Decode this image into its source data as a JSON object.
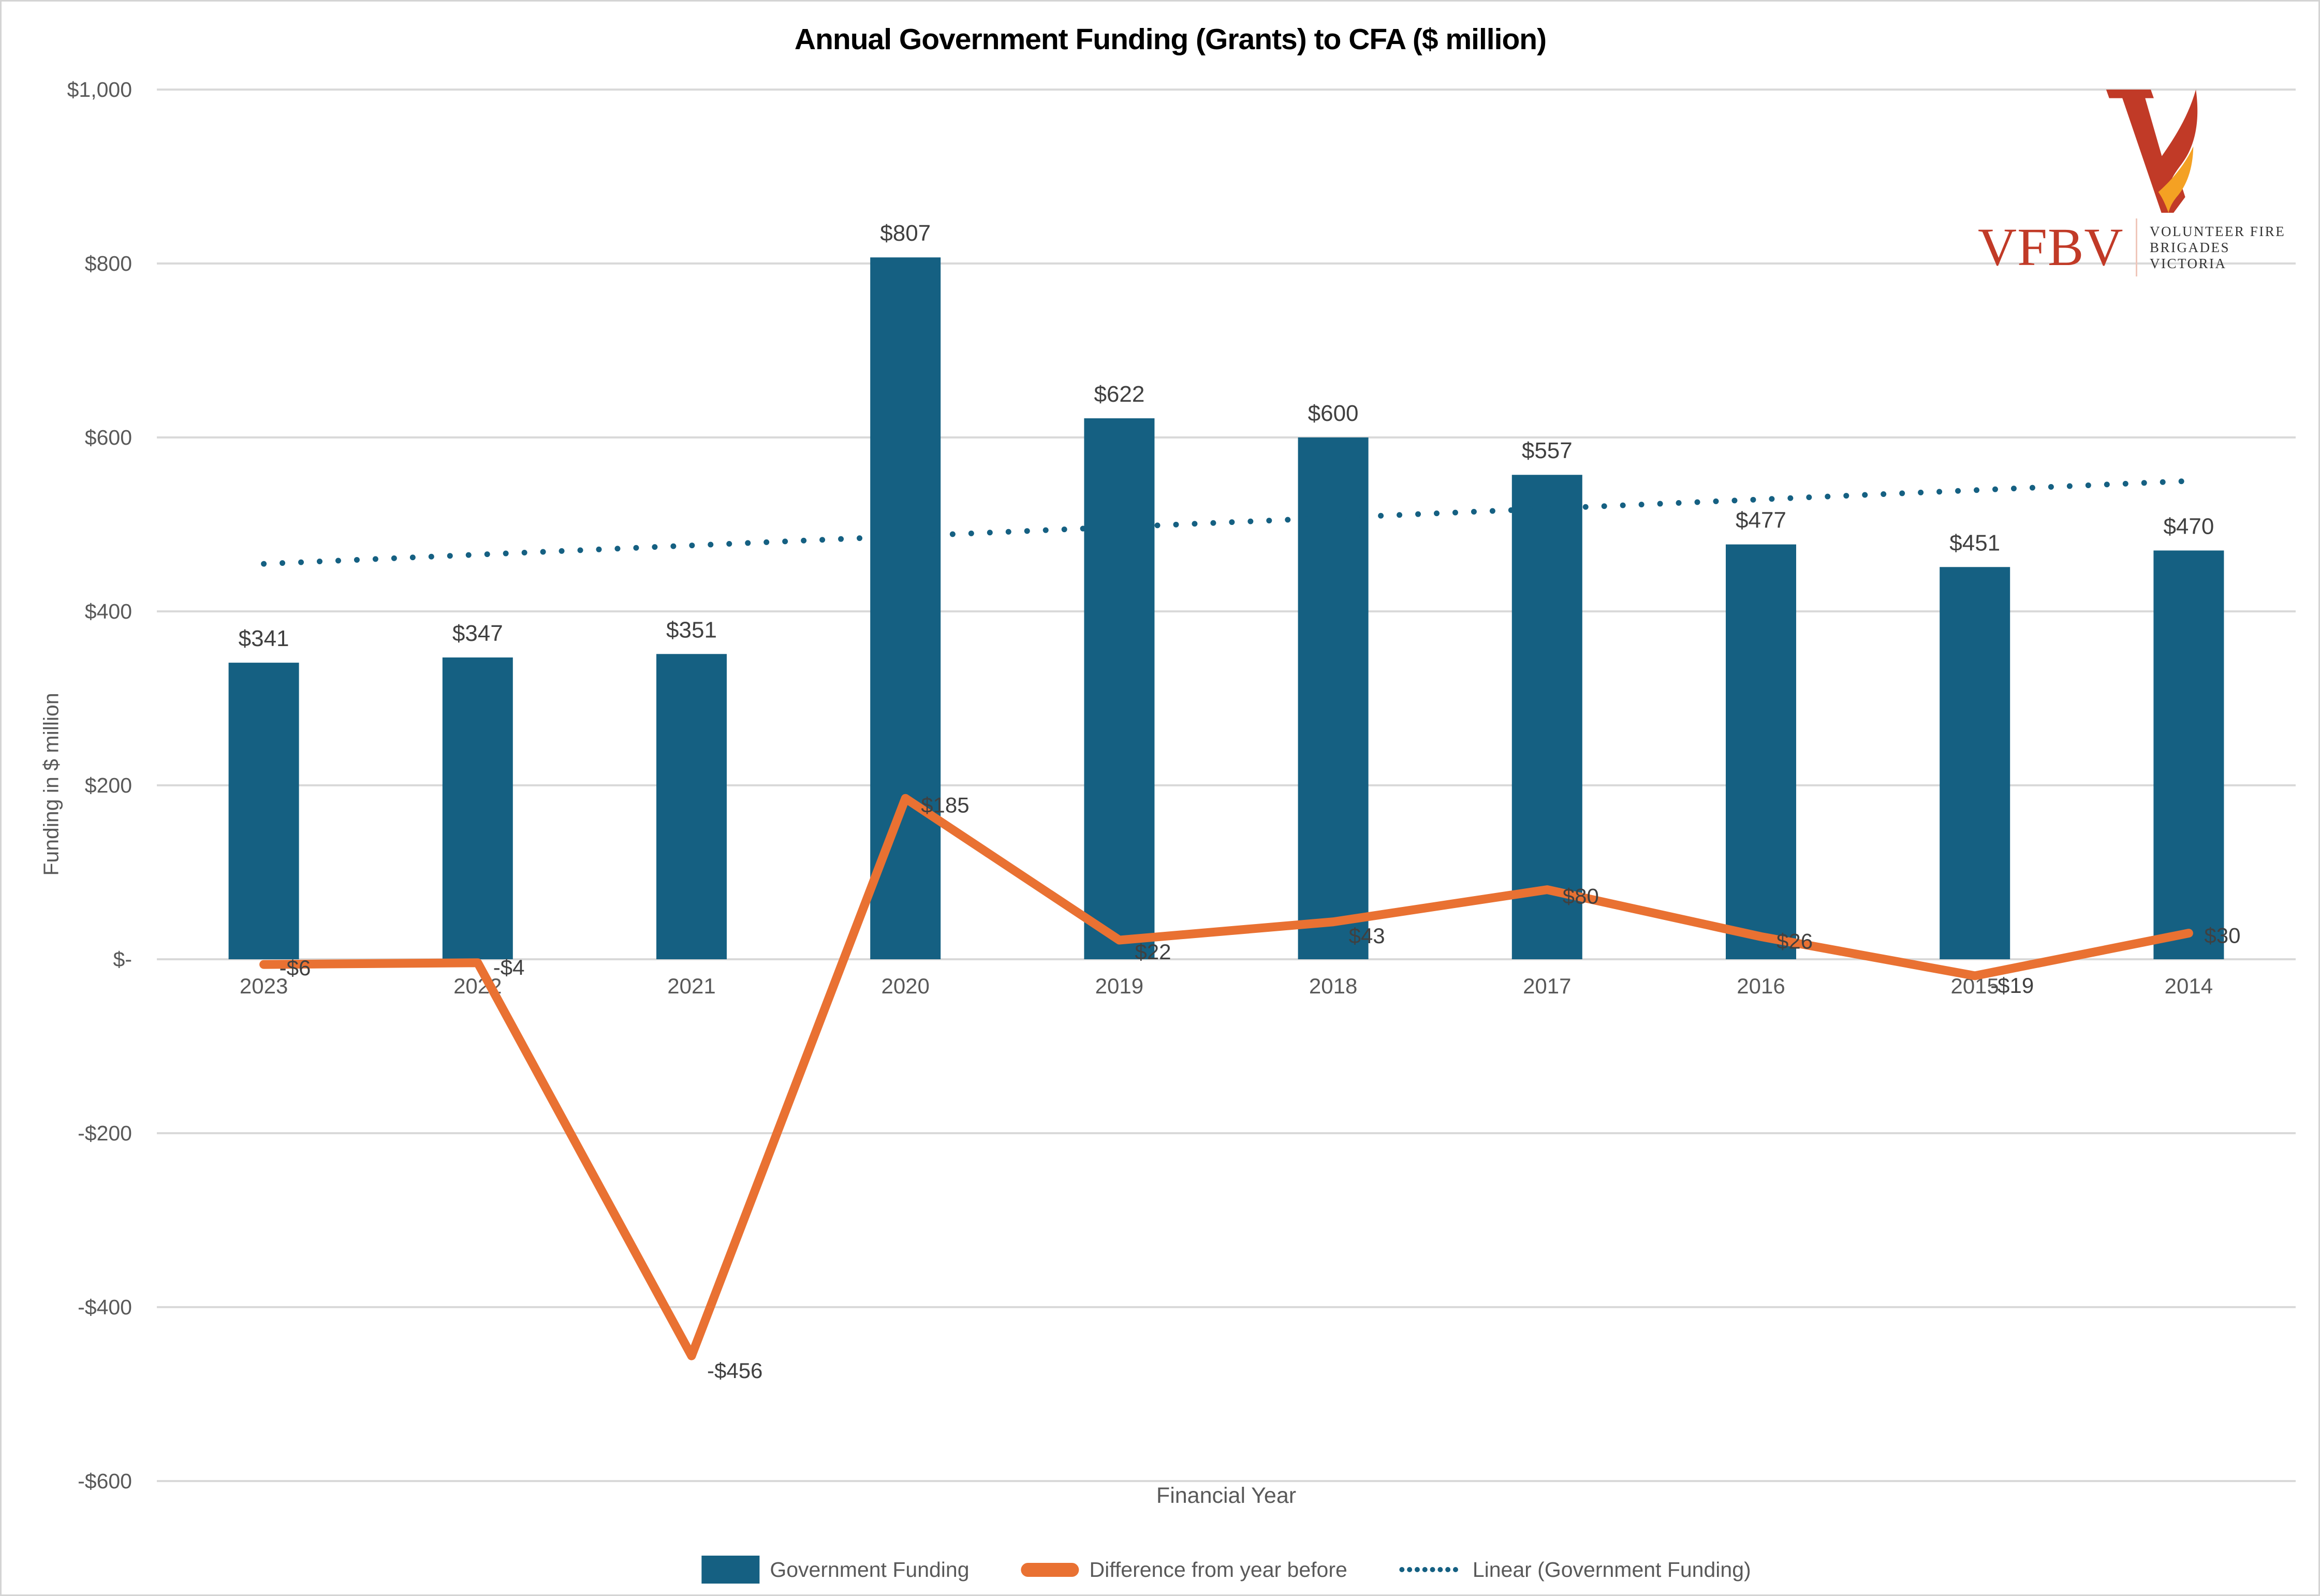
{
  "page": {
    "title": "Annual Government Funding (Grants) to CFA ($ million)"
  },
  "logo": {
    "brand": "VFBV",
    "org_line1": "VOLUNTEER FIRE",
    "org_line2": "BRIGADES VICTORIA",
    "red": "#C13A27",
    "orange": "#F4A123"
  },
  "chart_data": {
    "type": "bar",
    "title": "Annual Government Funding (Grants) to CFA ($ million)",
    "xlabel": "Financial Year",
    "ylabel": "Funding in $ million",
    "categories": [
      "2023",
      "2022",
      "2021",
      "2020",
      "2019",
      "2018",
      "2017",
      "2016",
      "2015",
      "2014"
    ],
    "series": [
      {
        "name": "Government Funding",
        "type": "bar",
        "color": "#156082",
        "values": [
          341,
          347,
          351,
          807,
          622,
          600,
          557,
          477,
          451,
          470
        ],
        "labels": [
          "$341",
          "$347",
          "$351",
          "$807",
          "$622",
          "$600",
          "$557",
          "$477",
          "$451",
          "$470"
        ]
      },
      {
        "name": "Difference from year before",
        "type": "line",
        "color": "#E97132",
        "values": [
          -6,
          -4,
          -456,
          185,
          22,
          43,
          80,
          26,
          -19,
          30
        ],
        "labels": [
          "-$6",
          "-$4",
          "-$456",
          "$185",
          "$22",
          "$43",
          "$80",
          "$26",
          "-$19",
          "$30"
        ],
        "label_dx": 30,
        "label_dy": [
          10,
          12,
          32,
          16,
          26,
          30,
          16,
          12,
          22,
          8
        ]
      },
      {
        "name": "Linear (Government Funding)",
        "type": "trendline",
        "of_series": 0,
        "color": "#156082",
        "style": "dotted"
      }
    ],
    "y_axis": {
      "min": -600,
      "max": 1000,
      "step": 200,
      "ticks": [
        {
          "v": 1000,
          "label": "$1,000"
        },
        {
          "v": 800,
          "label": "$800"
        },
        {
          "v": 600,
          "label": "$600"
        },
        {
          "v": 400,
          "label": "$400"
        },
        {
          "v": 200,
          "label": "$200"
        },
        {
          "v": 0,
          "label": "$-"
        },
        {
          "v": -200,
          "label": "-$200"
        },
        {
          "v": -400,
          "label": "-$400"
        },
        {
          "v": -600,
          "label": "-$600"
        }
      ]
    },
    "grid": true,
    "legend_position": "bottom",
    "colors": {
      "gridline": "#D9D9D9",
      "tick_text": "#595959",
      "data_label_text": "#404040"
    }
  }
}
